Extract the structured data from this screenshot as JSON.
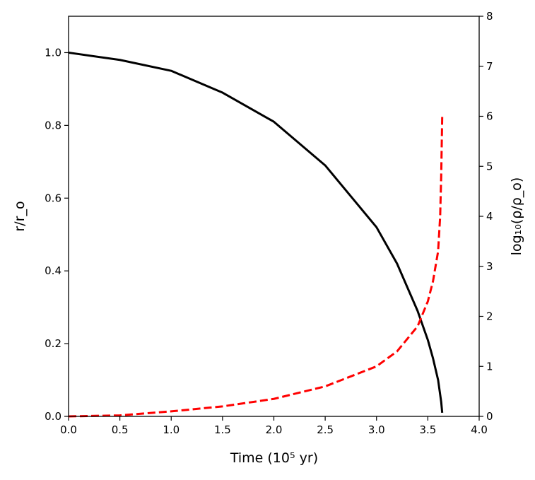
{
  "chart_data": {
    "type": "line",
    "xlabel": "Time (10⁵ yr)",
    "ylabel_left": "r/r_o",
    "ylabel_right": "log₁₀(ρ/ρ_o)",
    "xlim": [
      0,
      4
    ],
    "ylim_left": [
      0,
      1.1
    ],
    "ylim_right": [
      0,
      8
    ],
    "grid": false,
    "xticks": [
      "0.0",
      "0.5",
      "1.0",
      "1.5",
      "2.0",
      "2.5",
      "3.0",
      "3.5",
      "4.0"
    ],
    "yticks_left": [
      "0.0",
      "0.2",
      "0.4",
      "0.6",
      "0.8",
      "1.0"
    ],
    "yticks_right": [
      "0",
      "1",
      "2",
      "3",
      "4",
      "5",
      "6",
      "7",
      "8"
    ],
    "series": [
      {
        "axis": "left",
        "style": "solid",
        "color": "#000000",
        "x": [
          0.0,
          0.5,
          1.0,
          1.5,
          2.0,
          2.5,
          3.0,
          3.2,
          3.4,
          3.5,
          3.55,
          3.6,
          3.63,
          3.64
        ],
        "y": [
          1.0,
          0.98,
          0.95,
          0.89,
          0.81,
          0.69,
          0.52,
          0.42,
          0.29,
          0.21,
          0.16,
          0.1,
          0.04,
          0.01
        ]
      },
      {
        "axis": "right",
        "style": "dashed",
        "color": "#ff0000",
        "x": [
          0.0,
          0.5,
          1.0,
          1.5,
          2.0,
          2.5,
          3.0,
          3.2,
          3.4,
          3.5,
          3.55,
          3.6,
          3.62,
          3.63,
          3.64
        ],
        "y": [
          0.0,
          0.02,
          0.1,
          0.2,
          0.35,
          0.6,
          1.0,
          1.3,
          1.8,
          2.3,
          2.7,
          3.3,
          4.0,
          4.8,
          6.0
        ]
      }
    ]
  }
}
